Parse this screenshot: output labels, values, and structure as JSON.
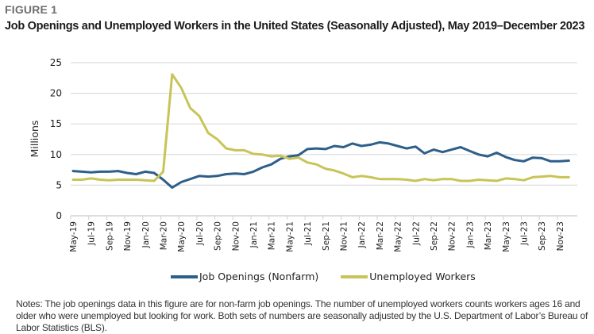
{
  "figure_label": "FIGURE 1",
  "title": "Job Openings and Unemployed Workers in the United States (Seasonally Adjusted), May 2019–December 2023",
  "notes": "Notes: The job openings data in this figure are for non-farm job openings. The number of unemployed workers counts workers ages 16 and older who were unemployed but looking for work. Both sets of numbers are seasonally adjusted by the U.S. Department of Labor’s Bureau of Labor Statistics (BLS).",
  "chart_data": {
    "type": "line",
    "title": "Job Openings and Unemployed Workers in the United States (Seasonally Adjusted), May 2019–December 2023",
    "xlabel": "",
    "ylabel": "Millions",
    "ylim": [
      0,
      25
    ],
    "yticks": [
      0,
      5,
      10,
      15,
      20,
      25
    ],
    "grid": true,
    "legend_position": "bottom",
    "x": [
      "May-19",
      "Jun-19",
      "Jul-19",
      "Aug-19",
      "Sep-19",
      "Oct-19",
      "Nov-19",
      "Dec-19",
      "Jan-20",
      "Feb-20",
      "Mar-20",
      "Apr-20",
      "May-20",
      "Jun-20",
      "Jul-20",
      "Aug-20",
      "Sep-20",
      "Oct-20",
      "Nov-20",
      "Dec-20",
      "Jan-21",
      "Feb-21",
      "Mar-21",
      "Apr-21",
      "May-21",
      "Jun-21",
      "Jul-21",
      "Aug-21",
      "Sep-21",
      "Oct-21",
      "Nov-21",
      "Dec-21",
      "Jan-22",
      "Feb-22",
      "Mar-22",
      "Apr-22",
      "May-22",
      "Jun-22",
      "Jul-22",
      "Aug-22",
      "Sep-22",
      "Oct-22",
      "Nov-22",
      "Dec-22",
      "Jan-23",
      "Feb-23",
      "Mar-23",
      "Apr-23",
      "May-23",
      "Jun-23",
      "Jul-23",
      "Aug-23",
      "Sep-23",
      "Oct-23",
      "Nov-23",
      "Dec-23"
    ],
    "xtick_labels": [
      "May-19",
      "Jul-19",
      "Sep-19",
      "Nov-19",
      "Jan-20",
      "Mar-20",
      "May-20",
      "Jul-20",
      "Sep-20",
      "Nov-20",
      "Jan-21",
      "Mar-21",
      "May-21",
      "Jul-21",
      "Sep-21",
      "Nov-21",
      "Jan-22",
      "Mar-22",
      "May-22",
      "Jul-22",
      "Sep-22",
      "Nov-22",
      "Jan-23",
      "Mar-23",
      "May-23",
      "Jul-23",
      "Sep-23",
      "Nov-23"
    ],
    "series": [
      {
        "name": "Job Openings (Nonfarm)",
        "color": "#2e5f8a",
        "values": [
          7.3,
          7.2,
          7.1,
          7.2,
          7.2,
          7.3,
          7.0,
          6.8,
          7.2,
          7.0,
          5.9,
          4.6,
          5.5,
          6.0,
          6.5,
          6.4,
          6.5,
          6.8,
          6.9,
          6.8,
          7.2,
          7.9,
          8.4,
          9.3,
          9.7,
          9.9,
          10.9,
          11.0,
          10.9,
          11.4,
          11.2,
          11.8,
          11.4,
          11.6,
          12.0,
          11.8,
          11.4,
          11.0,
          11.3,
          10.2,
          10.8,
          10.4,
          10.8,
          11.2,
          10.6,
          10.0,
          9.7,
          10.3,
          9.6,
          9.1,
          8.9,
          9.5,
          9.4,
          8.9,
          8.9,
          9.0
        ]
      },
      {
        "name": "Unemployed Workers",
        "color": "#c8c457",
        "values": [
          5.9,
          5.9,
          6.1,
          5.9,
          5.8,
          5.9,
          5.9,
          5.9,
          5.8,
          5.7,
          7.2,
          23.1,
          20.9,
          17.6,
          16.3,
          13.5,
          12.5,
          11.0,
          10.7,
          10.7,
          10.1,
          10.0,
          9.7,
          9.8,
          9.3,
          9.5,
          8.7,
          8.4,
          7.7,
          7.4,
          6.9,
          6.3,
          6.5,
          6.3,
          6.0,
          6.0,
          6.0,
          5.9,
          5.7,
          6.0,
          5.8,
          6.0,
          6.0,
          5.7,
          5.7,
          5.9,
          5.8,
          5.7,
          6.1,
          6.0,
          5.8,
          6.3,
          6.4,
          6.5,
          6.3,
          6.3
        ]
      }
    ]
  }
}
